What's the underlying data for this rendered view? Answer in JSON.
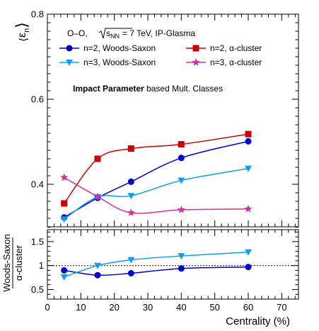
{
  "chart_data": [
    {
      "type": "line",
      "ylabel_symbol": "ε",
      "ylabel_subscript": "n",
      "ylim": [
        0.3,
        0.8
      ],
      "yticks": [
        0.4,
        0.6,
        0.8
      ],
      "grid": false,
      "legend_placement": "top-left",
      "header": {
        "system": "O–O,",
        "energy_prefix": "s",
        "energy_subscript": "NN",
        "energy_suffix": "= 7 TeV, IP-Glasma"
      },
      "annotation_bold": "Impact Parameter",
      "annotation_rest": "based Mult. Classes",
      "x": [
        5,
        15,
        25,
        40,
        60
      ],
      "series": [
        {
          "name": "n=2, Woods-Saxon",
          "color": "#0000cc",
          "marker": "circle",
          "values": [
            0.322,
            0.368,
            0.406,
            0.462,
            0.501
          ]
        },
        {
          "name": "n=2,  α-cluster",
          "color": "#cc0000",
          "marker": "square",
          "values": [
            0.355,
            0.46,
            0.484,
            0.494,
            0.518
          ]
        },
        {
          "name": "n=3, Woods-Saxon",
          "color": "#0aa0f0",
          "marker": "triangle-down",
          "values": [
            0.318,
            0.37,
            0.373,
            0.409,
            0.437
          ]
        },
        {
          "name": "n=3,  α-cluster",
          "color": "#cc3399",
          "marker": "star",
          "values": [
            0.416,
            0.371,
            0.333,
            0.34,
            0.342
          ]
        }
      ]
    },
    {
      "type": "line",
      "ylabel_top": "Woods-Saxon",
      "ylabel_bottom": "α-cluster",
      "xlabel": "Centrality (%)",
      "xlim": [
        0,
        75
      ],
      "xticks": [
        0,
        10,
        20,
        30,
        40,
        50,
        60,
        70
      ],
      "ylim": [
        0.3,
        1.75
      ],
      "yticks": [
        0.5,
        1,
        1.5
      ],
      "ytick_labels": [
        "0.5",
        "1",
        "1.5"
      ],
      "reference_line": 1,
      "x": [
        5,
        15,
        25,
        40,
        60
      ],
      "series": [
        {
          "color": "#0000cc",
          "marker": "circle",
          "values": [
            0.9,
            0.8,
            0.84,
            0.94,
            0.97
          ]
        },
        {
          "color": "#0aa0f0",
          "marker": "triangle-down",
          "values": [
            0.76,
            1.0,
            1.12,
            1.2,
            1.28
          ]
        }
      ]
    }
  ]
}
